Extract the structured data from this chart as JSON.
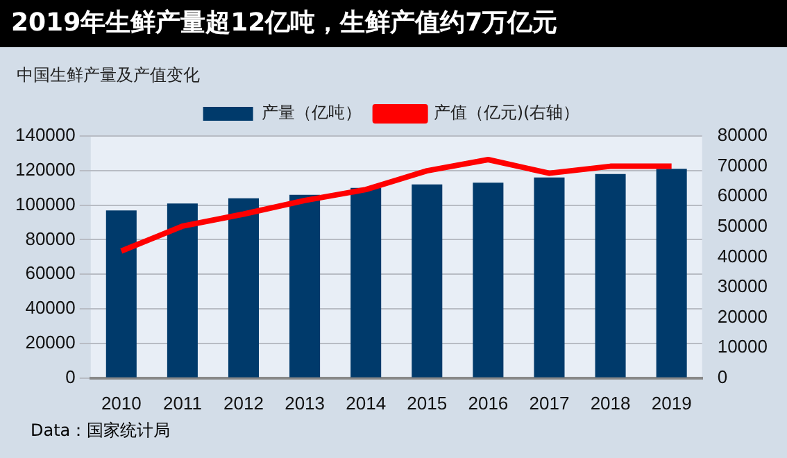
{
  "chart_data": {
    "type": "bar",
    "title": "2019年生鲜产量超12亿吨，生鲜产值约7万亿元",
    "subtitle": "中国生鲜产量及产值变化",
    "categories": [
      "2010",
      "2011",
      "2012",
      "2013",
      "2014",
      "2015",
      "2016",
      "2017",
      "2018",
      "2019"
    ],
    "series": [
      {
        "name": "产量（亿吨）",
        "color": "#003a6b",
        "values": [
          97000,
          101000,
          104000,
          106000,
          110000,
          112000,
          113000,
          116000,
          118000,
          121000
        ]
      },
      {
        "name": "产值（亿元)(右轴）",
        "type": "line",
        "axis": "y2",
        "color": "#ff0000",
        "values": [
          42000,
          50200,
          54200,
          58700,
          62300,
          68500,
          72200,
          67700,
          70000,
          70000
        ]
      }
    ],
    "ylim": [
      0,
      140000
    ],
    "yticks": [
      0,
      20000,
      40000,
      60000,
      80000,
      100000,
      120000,
      140000
    ],
    "y2lim": [
      0,
      80000
    ],
    "y2ticks": [
      0,
      10000,
      20000,
      30000,
      40000,
      50000,
      60000,
      70000,
      80000
    ],
    "grid": "y",
    "legend": "top",
    "marker": "none",
    "annotations": [
      "Data：国家统计局"
    ]
  }
}
